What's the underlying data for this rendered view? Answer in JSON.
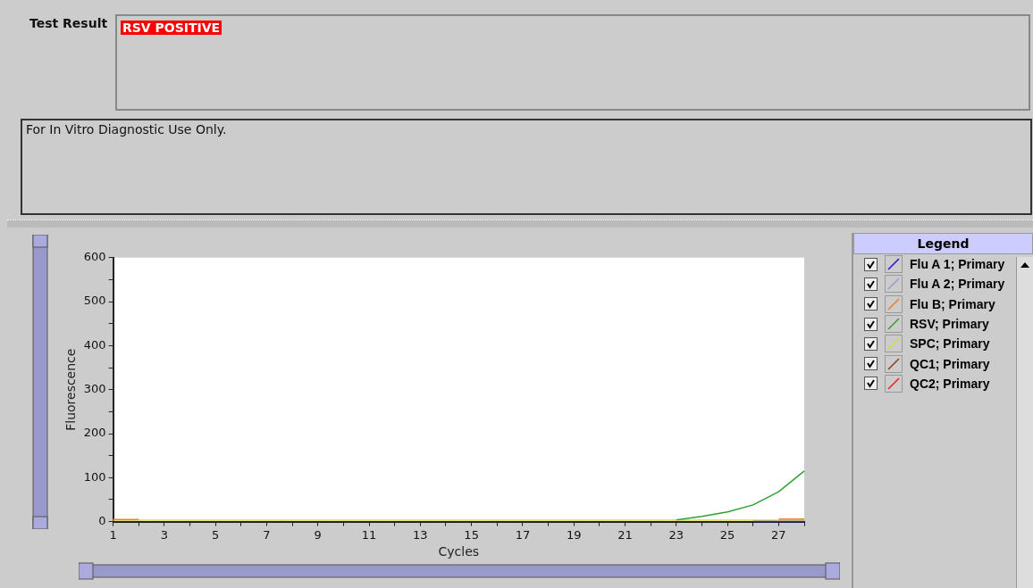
{
  "chart_data": {
    "type": "line",
    "xlabel": "Cycles",
    "ylabel": "Fluorescence",
    "legend_title": "Legend",
    "annotations": [
      "Test Result",
      "RSV POSITIVE",
      "For In Vitro Diagnostic Use Only."
    ],
    "x": [
      1,
      2,
      3,
      4,
      5,
      6,
      7,
      8,
      9,
      10,
      11,
      12,
      13,
      14,
      15,
      16,
      17,
      18,
      19,
      20,
      21,
      22,
      23,
      24,
      25,
      26,
      27,
      28
    ],
    "series": [
      {
        "name": "Flu A 1; Primary",
        "color": "#1f1fd0",
        "values": [
          null,
          null,
          null,
          null,
          null,
          null,
          null,
          null,
          null,
          null,
          null,
          null,
          null,
          null,
          null,
          null,
          null,
          null,
          null,
          null,
          null,
          null,
          null,
          null,
          null,
          0,
          0,
          0
        ]
      },
      {
        "name": "Flu A 2; Primary",
        "color": "#9a9ad0",
        "values": [
          null,
          null,
          null,
          null,
          null,
          null,
          null,
          null,
          null,
          null,
          null,
          null,
          null,
          null,
          null,
          null,
          null,
          null,
          null,
          null,
          null,
          null,
          null,
          null,
          null,
          null,
          null,
          null
        ]
      },
      {
        "name": "Flu B; Primary",
        "color": "#f08030",
        "values": [
          5,
          5,
          null,
          null,
          null,
          null,
          null,
          null,
          null,
          null,
          null,
          null,
          null,
          null,
          null,
          null,
          null,
          null,
          null,
          null,
          null,
          null,
          null,
          null,
          null,
          null,
          6,
          6
        ]
      },
      {
        "name": "RSV; Primary",
        "color": "#30a030",
        "values": [
          null,
          null,
          null,
          null,
          null,
          null,
          null,
          null,
          null,
          null,
          null,
          null,
          null,
          null,
          null,
          null,
          null,
          null,
          null,
          null,
          null,
          null,
          4,
          12,
          22,
          38,
          68,
          115
        ]
      },
      {
        "name": "SPC; Primary",
        "color": "#d8d840",
        "values": [
          3,
          3,
          3,
          3,
          3,
          3,
          3,
          3,
          3,
          3,
          3,
          3,
          3,
          3,
          3,
          3,
          3,
          3,
          3,
          3,
          3,
          3,
          3,
          3,
          3,
          3,
          3,
          3
        ]
      },
      {
        "name": "QC1; Primary",
        "color": "#8b4513",
        "values": [
          null,
          null,
          null,
          null,
          null,
          null,
          null,
          null,
          null,
          null,
          null,
          null,
          null,
          null,
          null,
          null,
          null,
          null,
          null,
          null,
          null,
          null,
          null,
          null,
          null,
          null,
          null,
          null
        ]
      },
      {
        "name": "QC2; Primary",
        "color": "#f02020",
        "values": [
          null,
          null,
          null,
          null,
          null,
          null,
          null,
          null,
          null,
          null,
          null,
          null,
          null,
          null,
          null,
          null,
          null,
          null,
          null,
          null,
          null,
          null,
          null,
          null,
          null,
          null,
          null,
          null
        ]
      }
    ],
    "xlim": [
      1,
      28
    ],
    "xticks": [
      1,
      {
        "value": 2,
        "label": null
      },
      3,
      {
        "value": 4,
        "label": null
      },
      5,
      {
        "value": 6,
        "label": null
      },
      7,
      {
        "value": 8,
        "label": null
      },
      9,
      {
        "value": 10,
        "label": null
      },
      11,
      {
        "value": 12,
        "label": null
      },
      13,
      {
        "value": 14,
        "label": null
      },
      15,
      {
        "value": 16,
        "label": null
      },
      17,
      {
        "value": 18,
        "label": null
      },
      19,
      {
        "value": 20,
        "label": null
      },
      21,
      {
        "value": 22,
        "label": null
      },
      23,
      {
        "value": 24,
        "label": null
      },
      25,
      {
        "value": 26,
        "label": null
      },
      27,
      {
        "value": 28,
        "label": null
      }
    ],
    "ylim": [
      0,
      600
    ],
    "yticks": [
      0,
      {
        "value": 50,
        "label": null
      },
      100,
      {
        "value": 150,
        "label": null
      },
      200,
      {
        "value": 250,
        "label": null
      },
      300,
      {
        "value": 350,
        "label": null
      },
      400,
      {
        "value": 450,
        "label": null
      },
      500,
      {
        "value": 550,
        "label": null
      },
      600
    ],
    "grid": false,
    "legend": "right",
    "marker": "none",
    "line_style": "solid"
  }
}
